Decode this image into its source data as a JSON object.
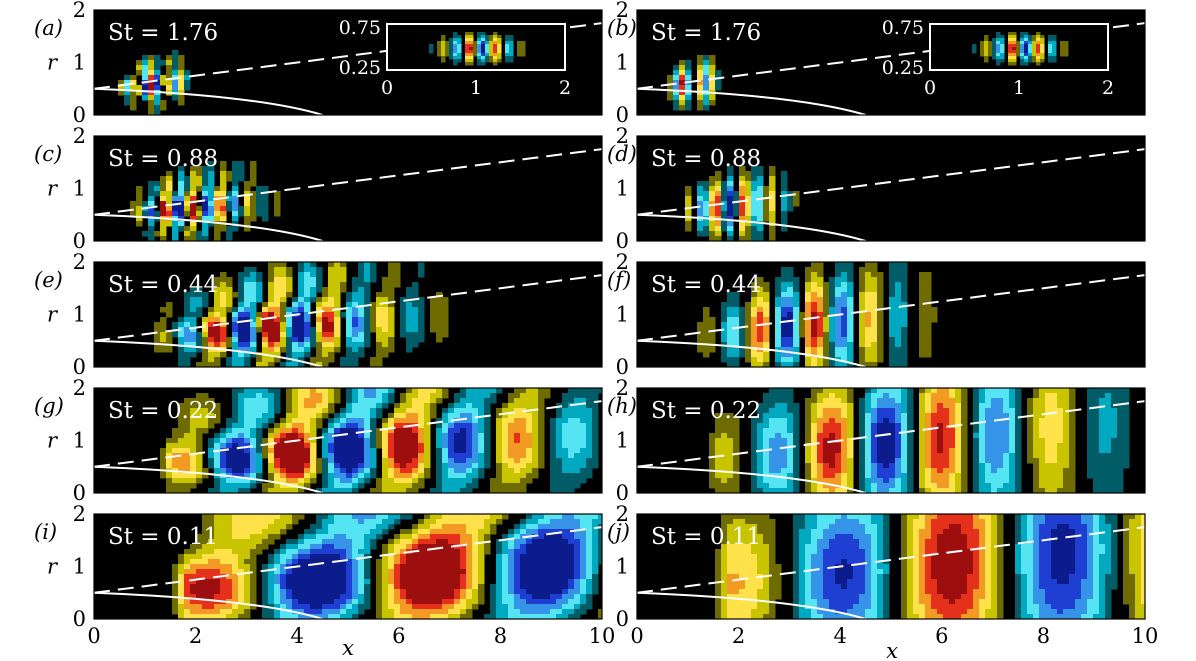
{
  "chart_data": {
    "type": "heatmap",
    "xlabel": "x",
    "ylabel": "r",
    "xlim": [
      0,
      10
    ],
    "ylim": [
      0,
      2
    ],
    "xticks": [
      "0",
      "2",
      "4",
      "6",
      "8",
      "10"
    ],
    "yticks": [
      "0",
      "1",
      "2"
    ],
    "colors": {
      "background": "#000000",
      "positive": [
        "#6e6b00",
        "#c9c400",
        "#ffe14a",
        "#f39a24",
        "#e5301c",
        "#9d0f0f"
      ],
      "negative": [
        "#005c66",
        "#00a9bf",
        "#55e5f2",
        "#3593e8",
        "#1e3fd1",
        "#0d1c8c"
      ],
      "contour_line": "#ffffff"
    },
    "panels": [
      {
        "label": "(a)",
        "st_text": "St = 1.76",
        "St": 1.76,
        "column": "left",
        "x_start": 0.5,
        "wavelength": 0.3,
        "amp_peak_x": 1.0,
        "inset": {
          "xticks": [
            "0",
            "1",
            "2"
          ],
          "yticks": [
            "0.25",
            "0.75"
          ],
          "xlim": [
            0,
            2
          ],
          "ylim": [
            0.25,
            0.75
          ]
        }
      },
      {
        "label": "(b)",
        "st_text": "St = 1.76",
        "St": 1.76,
        "column": "right",
        "x_start": 0.6,
        "wavelength": 0.3,
        "amp_peak_x": 1.0,
        "inset": {
          "xticks": [
            "0",
            "1",
            "2"
          ],
          "yticks": [
            "0.25",
            "0.75"
          ],
          "xlim": [
            0,
            2
          ],
          "ylim": [
            0.25,
            0.75
          ]
        }
      },
      {
        "label": "(c)",
        "st_text": "St = 0.88",
        "St": 0.88,
        "column": "left",
        "x_start": 0.8,
        "wavelength": 0.55,
        "amp_peak_x": 1.6
      },
      {
        "label": "(d)",
        "st_text": "St = 0.88",
        "St": 0.88,
        "column": "right",
        "x_start": 1.0,
        "wavelength": 0.55,
        "amp_peak_x": 1.7
      },
      {
        "label": "(e)",
        "st_text": "St = 0.44",
        "St": 0.44,
        "column": "left",
        "x_start": 1.2,
        "wavelength": 1.1,
        "amp_peak_x": 3.0
      },
      {
        "label": "(f)",
        "st_text": "St = 0.44",
        "St": 0.44,
        "column": "right",
        "x_start": 1.3,
        "wavelength": 1.1,
        "amp_peak_x": 3.0
      },
      {
        "label": "(g)",
        "st_text": "St = 0.22",
        "St": 0.22,
        "column": "left",
        "x_start": 1.5,
        "wavelength": 2.2,
        "amp_peak_x": 4.0
      },
      {
        "label": "(h)",
        "st_text": "St = 0.22",
        "St": 0.22,
        "column": "right",
        "x_start": 1.6,
        "wavelength": 2.2,
        "amp_peak_x": 4.5
      },
      {
        "label": "(i)",
        "st_text": "St = 0.11",
        "St": 0.11,
        "column": "left",
        "x_start": 1.8,
        "wavelength": 4.4,
        "amp_peak_x": 5.5
      },
      {
        "label": "(j)",
        "st_text": "St = 0.11",
        "St": 0.11,
        "column": "right",
        "x_start": 1.8,
        "wavelength": 4.4,
        "amp_peak_x": 6.0
      }
    ],
    "lines": {
      "dashed": {
        "description": "white dashed line",
        "from": [
          0,
          0.5
        ],
        "to": [
          10,
          1.75
        ]
      },
      "solid": {
        "description": "white solid curve",
        "from": [
          0,
          0.5
        ],
        "to": [
          4.5,
          0
        ]
      }
    }
  }
}
